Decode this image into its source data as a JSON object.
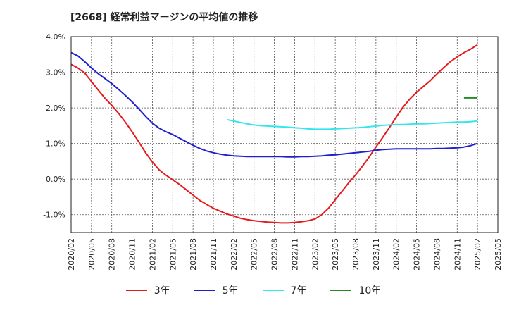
{
  "chart_data": {
    "type": "line",
    "title": "[2668]  経常利益マージンの平均値の推移",
    "xlabel": "",
    "ylabel": "",
    "ylim": [
      -1.5,
      4.0
    ],
    "y_ticks": [
      {
        "v": 4.0,
        "label": "4.0%"
      },
      {
        "v": 3.0,
        "label": "3.0%"
      },
      {
        "v": 2.0,
        "label": "2.0%"
      },
      {
        "v": 1.0,
        "label": "1.0%"
      },
      {
        "v": 0.0,
        "label": "0.0%"
      },
      {
        "v": -1.0,
        "label": "-1.0%"
      }
    ],
    "x_ticks": [
      "2020/02",
      "2020/05",
      "2020/08",
      "2020/11",
      "2021/02",
      "2021/05",
      "2021/08",
      "2021/11",
      "2022/02",
      "2022/05",
      "2022/08",
      "2022/11",
      "2023/02",
      "2023/05",
      "2023/08",
      "2023/11",
      "2024/02",
      "2024/05",
      "2024/08",
      "2024/11",
      "2025/02",
      "2025/05"
    ],
    "grid": true,
    "legend_position": "bottom",
    "series": [
      {
        "name": "3年",
        "color": "#e41a1c",
        "x": [
          "2020/02",
          "2020/03",
          "2020/04",
          "2020/05",
          "2020/06",
          "2020/07",
          "2020/08",
          "2020/09",
          "2020/10",
          "2020/11",
          "2020/12",
          "2021/01",
          "2021/02",
          "2021/03",
          "2021/04",
          "2021/05",
          "2021/06",
          "2021/07",
          "2021/08",
          "2021/09",
          "2021/10",
          "2021/11",
          "2021/12",
          "2022/01",
          "2022/02",
          "2022/03",
          "2022/04",
          "2022/05",
          "2022/06",
          "2022/07",
          "2022/08",
          "2022/09",
          "2022/10",
          "2022/11",
          "2022/12",
          "2023/01",
          "2023/02",
          "2023/03",
          "2023/04",
          "2023/05",
          "2023/06",
          "2023/07",
          "2023/08",
          "2023/09",
          "2023/10",
          "2023/11",
          "2023/12",
          "2024/01",
          "2024/02",
          "2024/03",
          "2024/04",
          "2024/05",
          "2024/06",
          "2024/07",
          "2024/08",
          "2024/09",
          "2024/10",
          "2024/11",
          "2024/12",
          "2025/01",
          "2025/02"
        ],
        "values": [
          3.22,
          3.12,
          2.98,
          2.74,
          2.5,
          2.27,
          2.07,
          1.85,
          1.6,
          1.33,
          1.04,
          0.74,
          0.48,
          0.26,
          0.11,
          -0.02,
          -0.15,
          -0.3,
          -0.45,
          -0.6,
          -0.71,
          -0.82,
          -0.9,
          -0.98,
          -1.04,
          -1.1,
          -1.14,
          -1.17,
          -1.19,
          -1.21,
          -1.22,
          -1.23,
          -1.23,
          -1.22,
          -1.2,
          -1.17,
          -1.12,
          -1.0,
          -0.82,
          -0.58,
          -0.34,
          -0.1,
          0.12,
          0.36,
          0.62,
          0.9,
          1.17,
          1.45,
          1.74,
          2.02,
          2.25,
          2.44,
          2.6,
          2.76,
          2.95,
          3.13,
          3.3,
          3.43,
          3.55,
          3.65,
          3.77
        ]
      },
      {
        "name": "5年",
        "color": "#1f1fcf",
        "x": [
          "2020/02",
          "2020/03",
          "2020/04",
          "2020/05",
          "2020/06",
          "2020/07",
          "2020/08",
          "2020/09",
          "2020/10",
          "2020/11",
          "2020/12",
          "2021/01",
          "2021/02",
          "2021/03",
          "2021/04",
          "2021/05",
          "2021/06",
          "2021/07",
          "2021/08",
          "2021/09",
          "2021/10",
          "2021/11",
          "2021/12",
          "2022/01",
          "2022/02",
          "2022/03",
          "2022/04",
          "2022/05",
          "2022/06",
          "2022/07",
          "2022/08",
          "2022/09",
          "2022/10",
          "2022/11",
          "2022/12",
          "2023/01",
          "2023/02",
          "2023/03",
          "2023/04",
          "2023/05",
          "2023/06",
          "2023/07",
          "2023/08",
          "2023/09",
          "2023/10",
          "2023/11",
          "2023/12",
          "2024/01",
          "2024/02",
          "2024/03",
          "2024/04",
          "2024/05",
          "2024/06",
          "2024/07",
          "2024/08",
          "2024/09",
          "2024/10",
          "2024/11",
          "2024/12",
          "2025/01",
          "2025/02"
        ],
        "values": [
          3.55,
          3.46,
          3.3,
          3.12,
          2.96,
          2.82,
          2.68,
          2.52,
          2.35,
          2.17,
          1.97,
          1.76,
          1.57,
          1.43,
          1.33,
          1.25,
          1.15,
          1.05,
          0.95,
          0.86,
          0.79,
          0.74,
          0.7,
          0.67,
          0.65,
          0.64,
          0.63,
          0.63,
          0.63,
          0.63,
          0.63,
          0.63,
          0.62,
          0.62,
          0.63,
          0.63,
          0.64,
          0.65,
          0.67,
          0.68,
          0.7,
          0.72,
          0.74,
          0.76,
          0.78,
          0.81,
          0.83,
          0.84,
          0.85,
          0.85,
          0.85,
          0.85,
          0.85,
          0.85,
          0.86,
          0.86,
          0.87,
          0.88,
          0.9,
          0.94,
          1.0
        ]
      },
      {
        "name": "7年",
        "color": "#33e6ee",
        "x": [
          "2022/01",
          "2022/02",
          "2022/03",
          "2022/04",
          "2022/05",
          "2022/06",
          "2022/07",
          "2022/08",
          "2022/09",
          "2022/10",
          "2022/11",
          "2022/12",
          "2023/01",
          "2023/02",
          "2023/03",
          "2023/04",
          "2023/05",
          "2023/06",
          "2023/07",
          "2023/08",
          "2023/09",
          "2023/10",
          "2023/11",
          "2023/12",
          "2024/01",
          "2024/02",
          "2024/03",
          "2024/04",
          "2024/05",
          "2024/06",
          "2024/07",
          "2024/08",
          "2024/09",
          "2024/10",
          "2024/11",
          "2024/12",
          "2025/01",
          "2025/02"
        ],
        "values": [
          1.67,
          1.63,
          1.59,
          1.55,
          1.52,
          1.5,
          1.49,
          1.48,
          1.47,
          1.46,
          1.44,
          1.43,
          1.41,
          1.4,
          1.4,
          1.4,
          1.41,
          1.42,
          1.43,
          1.44,
          1.45,
          1.47,
          1.49,
          1.51,
          1.52,
          1.53,
          1.53,
          1.54,
          1.55,
          1.55,
          1.56,
          1.57,
          1.58,
          1.59,
          1.6,
          1.6,
          1.61,
          1.63
        ]
      },
      {
        "name": "10年",
        "color": "#228b22",
        "x": [
          "2024/12",
          "2025/01",
          "2025/02"
        ],
        "values": [
          2.28,
          2.28,
          2.28
        ]
      }
    ]
  }
}
